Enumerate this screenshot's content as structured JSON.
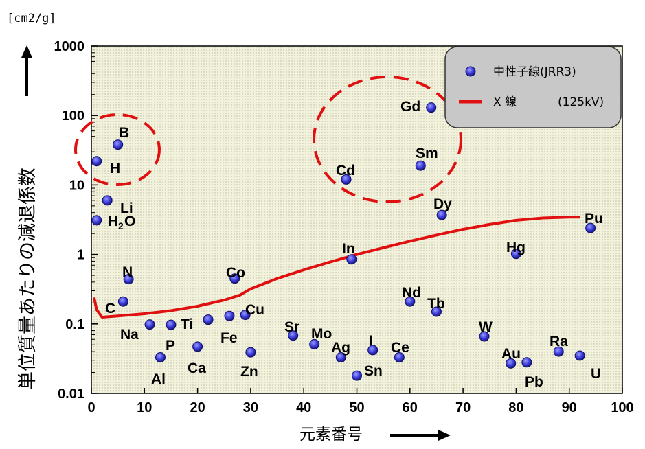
{
  "chart_data": {
    "type": "scatter",
    "unit_label": "[cm2/g]",
    "xlabel": "元素番号",
    "ylabel": "単位質量あたりの減退係数",
    "xlim": [
      0,
      100
    ],
    "ylim": [
      0.01,
      1000
    ],
    "yscale": "log",
    "x_ticks": [
      "0",
      "10",
      "20",
      "30",
      "40",
      "50",
      "60",
      "70",
      "80",
      "90",
      "100"
    ],
    "y_ticks": [
      "0.01",
      "0.1",
      "1",
      "10",
      "100",
      "1000"
    ],
    "grid": false,
    "legend": {
      "position": "top-right",
      "neutron": "中性子線(JRR3)",
      "xray_name": "X 線",
      "xray_energy": "(125kV)"
    },
    "series": [
      {
        "name": "中性子線(JRR3)",
        "kind": "points",
        "points": [
          {
            "label": "H",
            "x": 1,
            "y": 22
          },
          {
            "label": "H2O",
            "x": 1,
            "y": 3.1
          },
          {
            "label": "Li",
            "x": 3,
            "y": 6
          },
          {
            "label": "B",
            "x": 5,
            "y": 38
          },
          {
            "label": "C",
            "x": 6,
            "y": 0.21
          },
          {
            "label": "N",
            "x": 7,
            "y": 0.44
          },
          {
            "label": "Na",
            "x": 11,
            "y": 0.098
          },
          {
            "label": "Al",
            "x": 13,
            "y": 0.033
          },
          {
            "label": "P",
            "x": 15,
            "y": 0.097
          },
          {
            "label": "Ca",
            "x": 20,
            "y": 0.047
          },
          {
            "label": "Ti",
            "x": 22,
            "y": 0.115
          },
          {
            "label": "Fe",
            "x": 26,
            "y": 0.13
          },
          {
            "label": "Co",
            "x": 27,
            "y": 0.45
          },
          {
            "label": "Cu",
            "x": 29,
            "y": 0.135
          },
          {
            "label": "Zn",
            "x": 30,
            "y": 0.039
          },
          {
            "label": "Sr",
            "x": 38,
            "y": 0.068
          },
          {
            "label": "Mo",
            "x": 42,
            "y": 0.051
          },
          {
            "label": "Ag",
            "x": 47,
            "y": 0.033
          },
          {
            "label": "Cd",
            "x": 48,
            "y": 12
          },
          {
            "label": "In",
            "x": 49,
            "y": 0.85
          },
          {
            "label": "Sn",
            "x": 50,
            "y": 0.018
          },
          {
            "label": "I",
            "x": 53,
            "y": 0.042
          },
          {
            "label": "Ce",
            "x": 58,
            "y": 0.033
          },
          {
            "label": "Nd",
            "x": 60,
            "y": 0.21
          },
          {
            "label": "Sm",
            "x": 62,
            "y": 19
          },
          {
            "label": "Gd",
            "x": 64,
            "y": 130
          },
          {
            "label": "Tb",
            "x": 65,
            "y": 0.15
          },
          {
            "label": "Dy",
            "x": 66,
            "y": 3.7
          },
          {
            "label": "W",
            "x": 74,
            "y": 0.066
          },
          {
            "label": "Au",
            "x": 79,
            "y": 0.027
          },
          {
            "label": "Hg",
            "x": 80,
            "y": 1.02
          },
          {
            "label": "Pb",
            "x": 82,
            "y": 0.028
          },
          {
            "label": "Ra",
            "x": 88,
            "y": 0.04
          },
          {
            "label": "U",
            "x": 92,
            "y": 0.035
          },
          {
            "label": "Pu",
            "x": 94,
            "y": 2.4
          }
        ]
      },
      {
        "name": "X 線 (125kV)",
        "kind": "line",
        "x": [
          0.5,
          1,
          2,
          5,
          10,
          15,
          20,
          25,
          28,
          30,
          35,
          40,
          45,
          50,
          55,
          60,
          65,
          70,
          75,
          80,
          85,
          90,
          92
        ],
        "y": [
          0.24,
          0.16,
          0.125,
          0.13,
          0.14,
          0.155,
          0.18,
          0.22,
          0.26,
          0.32,
          0.45,
          0.6,
          0.78,
          1.0,
          1.25,
          1.55,
          1.9,
          2.3,
          2.7,
          3.1,
          3.35,
          3.45,
          3.45
        ]
      }
    ],
    "point_labels": {
      "B": "B",
      "H": "H",
      "Li": "Li",
      "H2O_main": "H",
      "H2O_sub": "2",
      "H2O_tail": "O",
      "C": "C",
      "N": "N",
      "Na": "Na",
      "Al": "Al",
      "P": "P",
      "Ca": "Ca",
      "Ti": "Ti",
      "Fe": "Fe",
      "Co": "Co",
      "Cu": "Cu",
      "Zn": "Zn",
      "Sr": "Sr",
      "Mo": "Mo",
      "Ag": "Ag",
      "Cd": "Cd",
      "In": "In",
      "Sn": "Sn",
      "I": "I",
      "Ce": "Ce",
      "Nd": "Nd",
      "Sm": "Sm",
      "Gd": "Gd",
      "Tb": "Tb",
      "Dy": "Dy",
      "W": "W",
      "Au": "Au",
      "Hg": "Hg",
      "Pb": "Pb",
      "Ra": "Ra",
      "U": "U",
      "Pu": "Pu"
    },
    "colors": {
      "point_fill": "#3a3ad8",
      "point_edge": "#10106a",
      "xray_line": "#e01010",
      "highlight_circle": "#e01010",
      "plot_bg": "#efeed8",
      "legend_bg": "#c8c8c8"
    }
  }
}
